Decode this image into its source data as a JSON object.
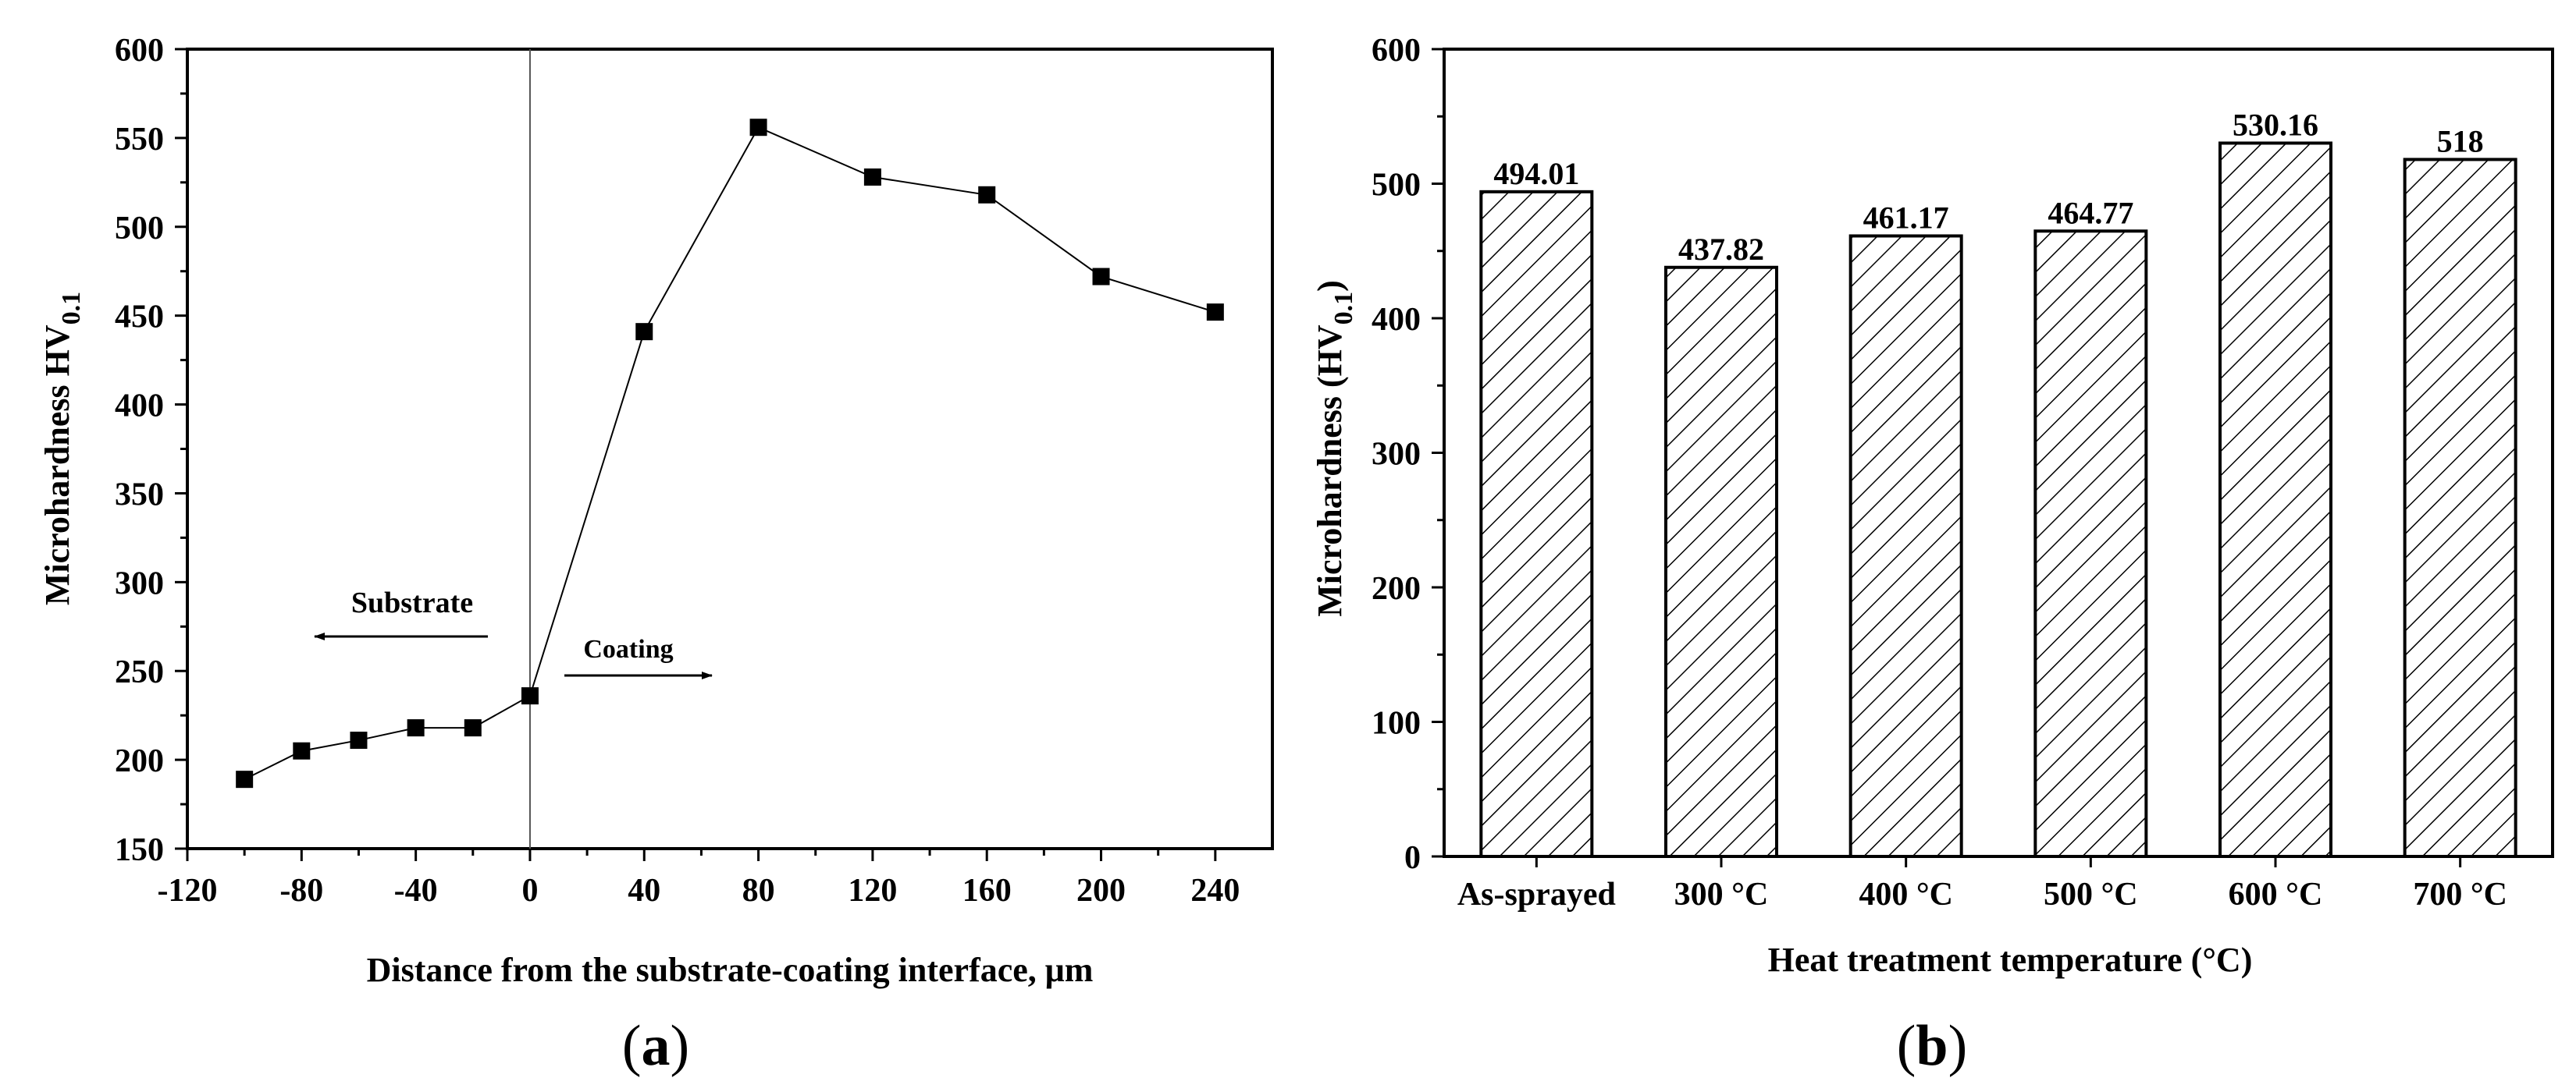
{
  "chart_data": [
    {
      "type": "line",
      "panel": "(a)",
      "panel_label": {
        "open": "(",
        "letter": "a",
        "close": ")"
      },
      "xlabel": "Distance from the substrate-coating interface, μm",
      "ylabel": {
        "main": "Microhardness HV",
        "sub": "0.1"
      },
      "xlim": [
        -120,
        260
      ],
      "ylim": [
        150,
        600
      ],
      "xticks": [
        -120,
        -80,
        -40,
        0,
        40,
        80,
        120,
        160,
        200,
        240
      ],
      "xtick_labels": [
        "-120",
        "-80",
        "-40",
        "0",
        "40",
        "80",
        "120",
        "160",
        "200",
        "240"
      ],
      "yticks": [
        150,
        200,
        250,
        300,
        350,
        400,
        450,
        500,
        550,
        600
      ],
      "ytick_labels": [
        "150",
        "200",
        "250",
        "300",
        "350",
        "400",
        "450",
        "500",
        "550",
        "600"
      ],
      "vline_x": 0,
      "series": [
        {
          "name": "Microhardness",
          "x": [
            -100,
            -80,
            -60,
            -40,
            -20,
            0,
            40,
            80,
            120,
            160,
            200,
            240
          ],
          "y": [
            189,
            205,
            211,
            218,
            218,
            236,
            441,
            556,
            528,
            518,
            472,
            452
          ]
        }
      ],
      "annotations": {
        "substrate": "Substrate",
        "coating": "Coating"
      }
    },
    {
      "type": "bar",
      "panel": "(b)",
      "panel_label": {
        "open": "(",
        "letter": "b",
        "close": ")"
      },
      "categories": [
        "As-sprayed",
        "300 °C",
        "400 °C",
        "500 °C",
        "600 °C",
        "700 °C"
      ],
      "values": [
        494.01,
        437.82,
        461.17,
        464.77,
        530.16,
        518
      ],
      "value_labels": [
        "494.01",
        "437.82",
        "461.17",
        "464.77",
        "530.16",
        "518"
      ],
      "xlabel": "Heat treatment temperature (°C)",
      "ylabel": {
        "main": "Microhardness (HV",
        "sub": "0.1",
        "close": ")"
      },
      "ylim": [
        0,
        600
      ],
      "yticks": [
        0,
        100,
        200,
        300,
        400,
        500,
        600
      ],
      "ytick_labels": [
        "0",
        "100",
        "200",
        "300",
        "400",
        "500",
        "600"
      ],
      "bar_fill": "hatched"
    }
  ],
  "colors": {
    "ink": "#000000",
    "background": "#ffffff",
    "vline": "#555555"
  }
}
